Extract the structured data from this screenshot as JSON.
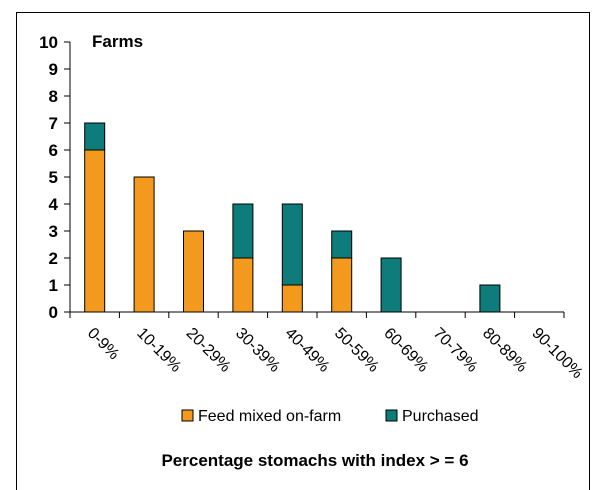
{
  "chart_data": {
    "type": "bar",
    "stacked": true,
    "title": "Farms",
    "xlabel": "Percentage stomachs with index > = 6",
    "ylabel": "",
    "ylim": [
      0,
      10
    ],
    "yticks": [
      "0",
      "1",
      "2",
      "3",
      "4",
      "5",
      "6",
      "7",
      "8",
      "9",
      "10"
    ],
    "grid": false,
    "legend_position": "bottom",
    "categories": [
      "0-9%",
      "10-19%",
      "20-29%",
      "30-39%",
      "40-49%",
      "50-59%",
      "60-69%",
      "70-79%",
      "80-89%",
      "90-100%"
    ],
    "series": [
      {
        "name": "Feed mixed on-farm",
        "color": "#F39A1E",
        "values": [
          6,
          5,
          3,
          2,
          1,
          2,
          0,
          0,
          0,
          0
        ]
      },
      {
        "name": "Purchased",
        "color": "#0E7C7B",
        "values": [
          1,
          0,
          0,
          2,
          3,
          1,
          2,
          0,
          1,
          0
        ]
      }
    ]
  }
}
